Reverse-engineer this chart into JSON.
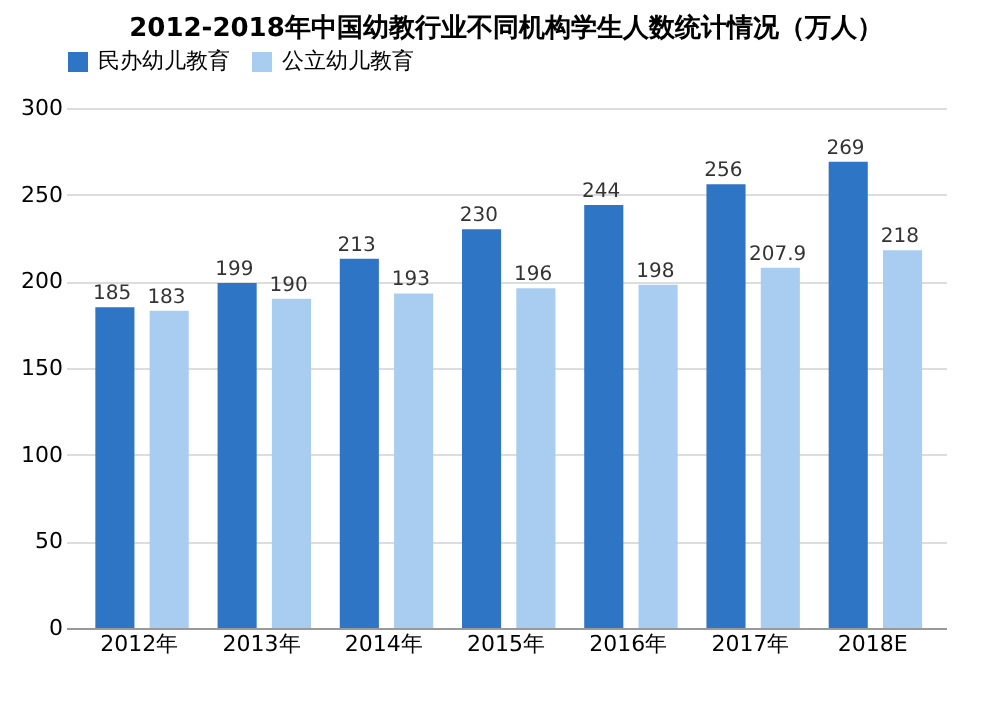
{
  "chart_data": {
    "type": "bar",
    "title": "2012-2018年中国幼教行业不同机构学生人数统计情况（万人）",
    "categories": [
      "2012年",
      "2013年",
      "2014年",
      "2015年",
      "2016年",
      "2017年",
      "2018E"
    ],
    "series": [
      {
        "name": "民办幼儿教育",
        "color": "#2e75c6",
        "values": [
          185,
          199,
          213,
          230,
          244,
          256,
          269
        ]
      },
      {
        "name": "公立幼儿教育",
        "color": "#a9cdf0",
        "values": [
          183,
          190,
          193,
          196,
          198,
          207.9,
          218
        ]
      }
    ],
    "ylim": [
      0,
      300
    ],
    "yticks": [
      0,
      50,
      100,
      150,
      200,
      250,
      300
    ],
    "grid": "y",
    "legend": "top",
    "data_labels": true
  }
}
